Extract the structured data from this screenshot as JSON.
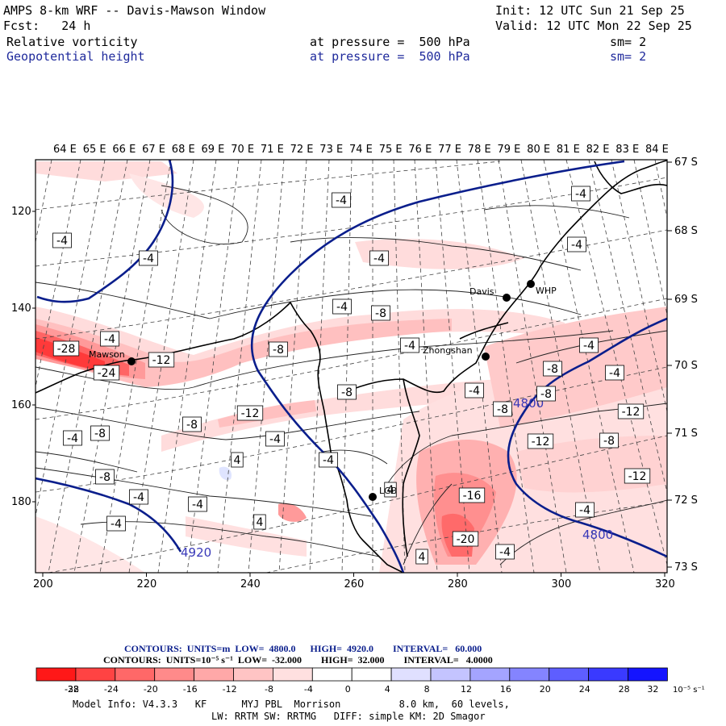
{
  "header": {
    "title": "AMPS 8-km WRF -- Davis-Mawson Window",
    "init": "Init: 12 UTC Sun 21 Sep 25",
    "fcst": "Fcst:   24 h",
    "valid": "Valid: 12 UTC Mon 22 Sep 25",
    "field1": {
      "name": "Relative vorticity",
      "level": "at pressure =  500 hPa",
      "sm": "sm= 2"
    },
    "field2": {
      "name": "Geopotential height",
      "level": "at pressure =  500 hPa",
      "sm": "sm= 2"
    }
  },
  "map": {
    "top_lon_labels": [
      "64 E",
      "65 E",
      "66 E",
      "67 E",
      "68 E",
      "69 E",
      "70 E",
      "71 E",
      "72 E",
      "73 E",
      "74 E",
      "75 E",
      "76 E",
      "77 E",
      "78 E",
      "79 E",
      "80 E",
      "81 E",
      "82 E",
      "83 E",
      "84 E"
    ],
    "right_lat_labels": [
      "67 S",
      "68 S",
      "69 S",
      "70 S",
      "71 S",
      "72 S",
      "73 S"
    ],
    "left_y_labels": [
      "120",
      "140",
      "160",
      "180"
    ],
    "bottom_x_labels": [
      "200",
      "220",
      "240",
      "260",
      "280",
      "300",
      "320"
    ],
    "stations": [
      {
        "name": "Mawson"
      },
      {
        "name": "Davis"
      },
      {
        "name": "WHP"
      },
      {
        "name": "Zhongshan"
      },
      {
        "name": "LGB"
      }
    ],
    "height_contour_labels": [
      "4800",
      "4920",
      "4800"
    ],
    "vorticity_labels": [
      "-28",
      "-24",
      "-20",
      "-16",
      "-12",
      "-12",
      "-12",
      "-12",
      "-12",
      "-8",
      "-8",
      "-8",
      "-8",
      "-8",
      "-8",
      "-8",
      "-8",
      "-8",
      "-8",
      "-4",
      "-4",
      "-4",
      "-4",
      "-4",
      "-4",
      "-4",
      "-4",
      "-4",
      "-4",
      "-4",
      "-4",
      "-4",
      "-4",
      "-4",
      "-4",
      "-4",
      "-4",
      "4",
      "4",
      "4",
      "4",
      "-4",
      "-4"
    ]
  },
  "contour_info": {
    "line1": {
      "label": "CONTOURS:",
      "units": "UNITS=m",
      "low": "LOW=  4800.0",
      "high": "HIGH=  4920.0",
      "interval": "INTERVAL=   60.000"
    },
    "line2": {
      "label": "CONTOURS:",
      "units": "UNITS=10⁻⁵ s⁻¹",
      "low": "LOW=  -32.000",
      "high": "HIGH=  32.000",
      "interval": "INTERVAL=   4.0000"
    }
  },
  "colorbar": {
    "colors": [
      "#ff1818",
      "#ff4343",
      "#ff6868",
      "#ff8a8a",
      "#ffa8a8",
      "#ffc4c4",
      "#ffe0e0",
      "#ffffff",
      "#ffffff",
      "#e0e0ff",
      "#c4c4ff",
      "#a4a4ff",
      "#8484ff",
      "#5e5eff",
      "#3a3aff",
      "#1414ff"
    ],
    "tick_labels": [
      "-32",
      "-28",
      "-24",
      "-20",
      "-16",
      "-12",
      "-8",
      "-4",
      "0",
      "4",
      "8",
      "12",
      "16",
      "20",
      "24",
      "28",
      "32"
    ],
    "units": "10⁻⁵ s⁻¹"
  },
  "model_info": {
    "line1": "Model Info: V4.3.3   KF      MYJ PBL  Morrison          8.0 km,  60 levels,",
    "line2": "LW: RRTM SW: RRTMG   DIFF: simple KM: 2D Smagor"
  }
}
